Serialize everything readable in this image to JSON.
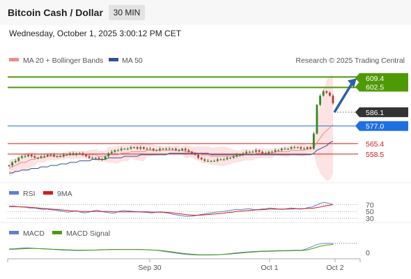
{
  "header": {
    "title": "Bitcoin Cash / Dollar",
    "timeframe": "30 MIN"
  },
  "datetime": "Wednesday, October 1, 2025 3:00:12 PM CET",
  "legend": {
    "ma20": "MA 20 + Bollinger Bands",
    "ma50": "MA 50",
    "credit": "Research © 2025 Trading Central"
  },
  "colors": {
    "ma20": "#f08a8a",
    "ma50": "#2f5496",
    "green": "#4e9a06",
    "blue": "#1f6fe0",
    "red": "#d11b1b",
    "dark": "#333333"
  },
  "chart_data": [
    {
      "type": "candlestick",
      "title": "Bitcoin Cash / Dollar",
      "x_ticks": [
        "Sep 30",
        "Oct 1",
        "Oct 2"
      ],
      "price_levels": [
        {
          "label": "609.4",
          "color": "green"
        },
        {
          "label": "602.5",
          "color": "green"
        },
        {
          "label": "586.1",
          "color": "dark"
        },
        {
          "label": "577.0",
          "color": "blue"
        },
        {
          "label": "565.4",
          "color": "red"
        },
        {
          "label": "558.5",
          "color": "red"
        }
      ],
      "ylim": [
        546,
        616
      ],
      "close": [
        551,
        553,
        554,
        556,
        557,
        557,
        558,
        557,
        556,
        556,
        557,
        557,
        558,
        558,
        557,
        557,
        557,
        558,
        558,
        559,
        558,
        559,
        559,
        558,
        557,
        556,
        556,
        556,
        555,
        555,
        557,
        559,
        560,
        561,
        561,
        562,
        562,
        562,
        563,
        563,
        562,
        563,
        562,
        562,
        562,
        561,
        561,
        562,
        562,
        562,
        562,
        562,
        561,
        561,
        562,
        561,
        560,
        559,
        558,
        556,
        555,
        554,
        554,
        554,
        554,
        555,
        555,
        555,
        556,
        556,
        557,
        558,
        558,
        559,
        560,
        560,
        560,
        561,
        560,
        559,
        559,
        560,
        560,
        561,
        561,
        562,
        562,
        562,
        563,
        563,
        563,
        562,
        562,
        563,
        562,
        572,
        591,
        597,
        600,
        599,
        597,
        592
      ],
      "ma20": [
        549,
        550,
        551,
        552,
        553,
        553,
        554,
        555,
        555,
        556,
        556,
        556,
        557,
        557,
        557,
        557,
        557,
        557,
        558,
        558,
        558,
        558,
        558,
        558,
        558,
        558,
        558,
        558,
        557,
        557,
        557,
        558,
        558,
        558,
        558,
        559,
        559,
        559,
        560,
        560,
        560,
        560,
        560,
        561,
        561,
        561,
        561,
        561,
        561,
        561,
        561,
        561,
        561,
        561,
        561,
        560,
        560,
        560,
        559,
        559,
        558,
        558,
        558,
        557,
        557,
        557,
        557,
        557,
        557,
        557,
        557,
        557,
        557,
        558,
        558,
        558,
        558,
        559,
        559,
        559,
        559,
        559,
        559,
        560,
        560,
        560,
        560,
        560,
        561,
        561,
        561,
        561,
        561,
        562,
        562,
        563,
        566,
        569,
        572,
        574,
        576,
        578
      ],
      "ma50": [
        546,
        546,
        547,
        547,
        548,
        548,
        548,
        549,
        549,
        549,
        550,
        550,
        550,
        551,
        551,
        551,
        552,
        552,
        552,
        553,
        553,
        553,
        554,
        554,
        554,
        554,
        555,
        555,
        555,
        555,
        555,
        556,
        556,
        556,
        556,
        556,
        557,
        557,
        557,
        557,
        557,
        558,
        558,
        558,
        558,
        558,
        558,
        558,
        558,
        558,
        559,
        559,
        559,
        559,
        559,
        559,
        559,
        559,
        559,
        559,
        559,
        559,
        559,
        558,
        558,
        558,
        558,
        558,
        558,
        558,
        558,
        558,
        558,
        558,
        558,
        558,
        558,
        558,
        558,
        558,
        558,
        558,
        558,
        558,
        558,
        558,
        558,
        558,
        558,
        558,
        558,
        558,
        558,
        558,
        558,
        559,
        561,
        562,
        563,
        564,
        566,
        567
      ],
      "forecast_arrow": {
        "from": 586.1,
        "to": 609.4
      }
    },
    {
      "type": "line",
      "series": [
        {
          "name": "RSI"
        },
        {
          "name": "9MA"
        }
      ],
      "y_ticks": [
        "70",
        "50",
        "30"
      ],
      "ylim": [
        20,
        85
      ],
      "rsi": [
        65,
        66,
        64,
        63,
        62,
        60,
        60,
        58,
        56,
        57,
        55,
        54,
        52,
        50,
        48,
        50,
        52,
        48,
        46,
        48,
        52,
        54,
        50,
        48,
        46,
        45,
        50,
        53,
        52,
        51,
        50,
        49,
        48,
        47,
        46,
        48,
        49,
        47,
        45,
        42,
        40,
        38,
        36,
        36,
        37,
        40,
        42,
        44,
        46,
        48,
        49,
        50,
        52,
        54,
        56,
        55,
        57,
        58,
        56,
        55,
        57,
        58,
        60,
        59,
        57,
        56,
        58,
        60,
        59,
        57,
        58,
        61,
        63,
        68,
        74,
        76,
        74,
        70
      ],
      "ma9": [
        64,
        64,
        64,
        63,
        63,
        62,
        61,
        60,
        59,
        58,
        57,
        56,
        55,
        54,
        53,
        52,
        51,
        50,
        50,
        50,
        50,
        50,
        50,
        50,
        50,
        49,
        49,
        49,
        49,
        49,
        49,
        49,
        49,
        49,
        48,
        48,
        48,
        48,
        47,
        46,
        44,
        43,
        41,
        40,
        39,
        39,
        40,
        41,
        42,
        43,
        44,
        45,
        47,
        48,
        50,
        51,
        52,
        53,
        54,
        55,
        55,
        56,
        57,
        57,
        57,
        57,
        57,
        57,
        58,
        58,
        58,
        59,
        59,
        61,
        63,
        66,
        68,
        70
      ]
    },
    {
      "type": "line",
      "series": [
        {
          "name": "MACD"
        },
        {
          "name": "MACD Signal"
        }
      ],
      "y_ticks": [
        "0"
      ],
      "ylim": [
        -3,
        7
      ],
      "macd": [
        2.0,
        2.2,
        2.5,
        2.6,
        2.4,
        2.2,
        2.0,
        1.8,
        1.6,
        1.4,
        1.3,
        1.2,
        1.2,
        1.3,
        1.4,
        1.6,
        1.7,
        1.8,
        1.8,
        1.8,
        1.8,
        1.8,
        1.7,
        1.5,
        1.3,
        0.9,
        0.4,
        -0.1,
        -0.6,
        -1.0,
        -1.2,
        -1.3,
        -1.3,
        -1.3,
        -1.2,
        -1.0,
        -0.6,
        -0.2,
        0.1,
        0.4,
        0.6,
        0.8,
        0.9,
        1.0,
        1.1,
        1.1,
        1.2,
        1.3,
        1.4,
        2.5,
        4.0,
        5.0,
        5.1,
        5.1
      ],
      "signal": [
        1.8,
        1.9,
        2.1,
        2.3,
        2.3,
        2.2,
        2.1,
        1.9,
        1.8,
        1.6,
        1.5,
        1.4,
        1.4,
        1.4,
        1.4,
        1.5,
        1.6,
        1.7,
        1.7,
        1.7,
        1.7,
        1.7,
        1.6,
        1.5,
        1.4,
        1.1,
        0.7,
        0.3,
        -0.2,
        -0.6,
        -0.9,
        -1.1,
        -1.2,
        -1.2,
        -1.2,
        -1.0,
        -0.8,
        -0.5,
        -0.2,
        0.1,
        0.4,
        0.6,
        0.7,
        0.8,
        0.9,
        1.0,
        1.0,
        1.1,
        1.2,
        1.6,
        2.6,
        3.6,
        4.2,
        4.5
      ]
    }
  ]
}
